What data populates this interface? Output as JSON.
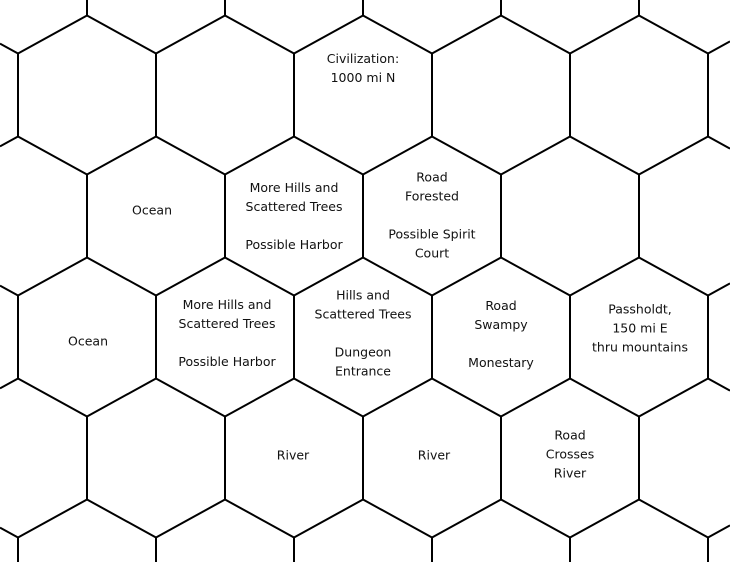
{
  "colors": {
    "background": "#ffffff",
    "grid_line": "#000000",
    "text": "#111111"
  },
  "hexes": {
    "civilization": {
      "text": "Civilization:\n1000 mi N"
    },
    "ocean_north": {
      "text": "Ocean"
    },
    "hills_harbor_north": {
      "text": "More Hills and\nScattered Trees\n\nPossible Harbor"
    },
    "road_forested": {
      "text": "Road\nForested\n\nPossible Spirit\nCourt"
    },
    "ocean_west": {
      "text": "Ocean"
    },
    "hills_harbor_south": {
      "text": "More Hills and\nScattered Trees\n\nPossible Harbor"
    },
    "hills_dungeon": {
      "text": "Hills and\nScattered Trees\n\nDungeon\nEntrance"
    },
    "road_swampy": {
      "text": "Road\nSwampy\n\nMonestary"
    },
    "passholdt": {
      "text": "Passholdt,\n150 mi E\nthru mountains"
    },
    "river_west": {
      "text": "River"
    },
    "river_east": {
      "text": "River"
    },
    "road_crosses_river": {
      "text": "Road\nCrosses\nRiver"
    }
  }
}
